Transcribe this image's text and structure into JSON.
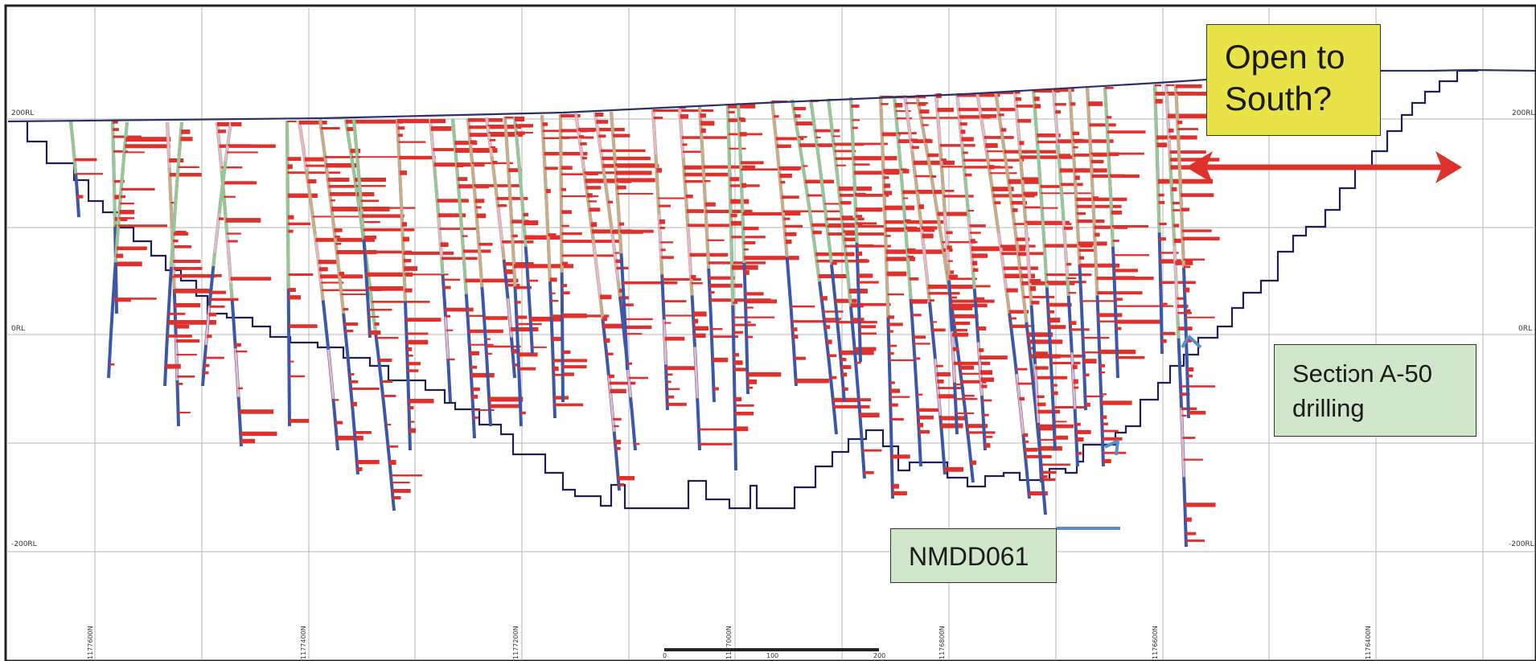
{
  "rl_labels": {
    "rl_200": "200RL",
    "rl_0": "0RL",
    "rl_neg200": "-200RL"
  },
  "northings": [
    "1177600N",
    "1177400N",
    "1177200N",
    "1177000N",
    "1176800N",
    "1176600N",
    "1176400N"
  ],
  "scale_bar": {
    "zero": "0",
    "mid": "100",
    "end": "200"
  },
  "callouts": {
    "open_south": [
      "Open to",
      "South?"
    ],
    "section": [
      "Sectiɔn A-50",
      "drilling"
    ],
    "hole": "NMDD061"
  },
  "colors": {
    "grid": "#b5b5b5",
    "surface": "#2b2f6b",
    "pit_shell": "#1c1f4f",
    "assay": "#e0302c",
    "hole_blue": "#3d57a8",
    "hole_green": "#9cc596",
    "hole_tan": "#c8ae88",
    "hole_pink": "#e6b8c8",
    "callout_yellow": "#e9e34a",
    "callout_green": "#cfe6c8",
    "arrow": "#e0302c",
    "tick": "#5b8ec8"
  }
}
